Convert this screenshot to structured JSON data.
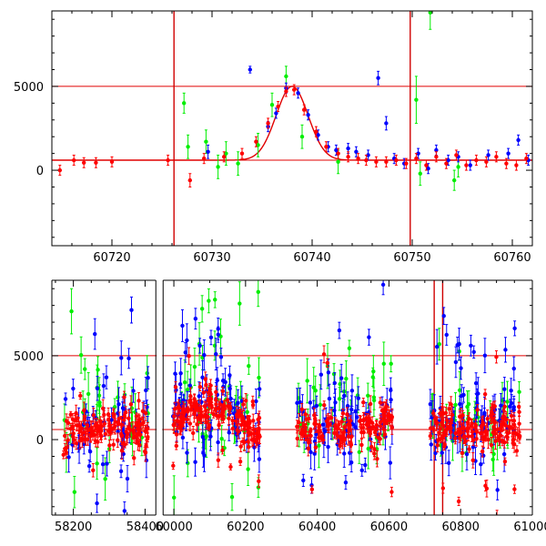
{
  "chart_data": [
    {
      "type": "scatter",
      "title": "",
      "xlabel": "",
      "ylabel": "",
      "xlim": [
        60714,
        60762
      ],
      "ylim": [
        -4500,
        9500
      ],
      "xticks": [
        60720,
        60730,
        60740,
        60750,
        60760
      ],
      "yticks": [
        0,
        5000
      ],
      "hlines": [
        5000,
        600
      ],
      "vlines": [
        60726.2,
        60749.8
      ],
      "colors": {
        "blue": "#0000ff",
        "green": "#00ee00",
        "red": "#ff0000",
        "lines": "#dd0000"
      },
      "model": {
        "baseline": 600,
        "peak_time": 60738.0,
        "peak_value": 5000,
        "width": 1.6
      },
      "series": [
        {
          "color": "blue",
          "x": [
            60729.6,
            60733.8,
            60735.6,
            60736.4,
            60737.4,
            60738.6,
            60739.6,
            60740.6,
            60741.6,
            60742.4,
            60743.6,
            60744.4,
            60745.6,
            60746.6,
            60747.4,
            60748.2,
            60749.2,
            60750.6,
            60751.6,
            60752.4,
            60753.6,
            60754.6,
            60755.8,
            60757.6,
            60759.6,
            60760.6,
            60761.6
          ],
          "y": [
            1100,
            6000,
            2600,
            3400,
            4900,
            4600,
            3300,
            2100,
            1400,
            1200,
            1300,
            1100,
            900,
            5500,
            2800,
            700,
            400,
            1000,
            100,
            1200,
            600,
            800,
            300,
            900,
            1000,
            1800,
            600
          ],
          "err": [
            400,
            200,
            300,
            300,
            300,
            300,
            300,
            300,
            300,
            300,
            300,
            300,
            300,
            400,
            400,
            300,
            300,
            300,
            300,
            300,
            300,
            300,
            300,
            300,
            300,
            300,
            300
          ]
        },
        {
          "color": "green",
          "x": [
            60727.2,
            60727.6,
            60729.4,
            60730.6,
            60731.4,
            60732.6,
            60734.6,
            60736.0,
            60737.4,
            60739.0,
            60742.6,
            60750.4,
            60750.8,
            60751.8,
            60754.2,
            60754.6
          ],
          "y": [
            4000,
            1400,
            1700,
            200,
            1000,
            400,
            1500,
            3900,
            5600,
            2000,
            500,
            4200,
            -200,
            9400,
            -600,
            200
          ],
          "err": [
            600,
            700,
            700,
            700,
            700,
            700,
            700,
            700,
            600,
            700,
            700,
            1400,
            700,
            1000,
            600,
            600
          ]
        },
        {
          "color": "red",
          "x": [
            60714.8,
            60716.2,
            60717.2,
            60718.4,
            60720.0,
            60725.6,
            60727.8,
            60729.2,
            60731.2,
            60733.0,
            60734.4,
            60735.6,
            60736.6,
            60737.4,
            60738.2,
            60739.2,
            60740.4,
            60741.4,
            60742.6,
            60743.6,
            60744.6,
            60745.4,
            60746.4,
            60747.4,
            60748.4,
            60749.4,
            60750.4,
            60751.4,
            60752.4,
            60753.4,
            60754.4,
            60755.4,
            60756.4,
            60757.4,
            60758.4,
            60759.4,
            60760.4,
            60761.4
          ],
          "y": [
            0,
            600,
            450,
            450,
            500,
            600,
            -600,
            700,
            800,
            1000,
            1700,
            2800,
            3800,
            4700,
            4800,
            3600,
            2300,
            1400,
            1000,
            800,
            700,
            600,
            500,
            500,
            600,
            400,
            700,
            300,
            800,
            400,
            900,
            300,
            600,
            500,
            800,
            400,
            300,
            700
          ],
          "err": [
            300,
            300,
            300,
            300,
            300,
            300,
            400,
            300,
            300,
            300,
            300,
            300,
            300,
            300,
            300,
            300,
            300,
            300,
            300,
            300,
            300,
            300,
            300,
            300,
            300,
            300,
            300,
            300,
            300,
            300,
            300,
            300,
            300,
            300,
            300,
            300,
            300,
            300
          ]
        }
      ]
    },
    {
      "type": "scatter",
      "title": "",
      "xlabel": "",
      "ylabel": "",
      "xlim": [
        58140,
        61000
      ],
      "ylim": [
        -4500,
        9500
      ],
      "xticks": [
        58200,
        58400,
        60000,
        60200,
        60400,
        60600,
        60800,
        61000
      ],
      "yticks": [
        0,
        5000
      ],
      "hlines": [
        5000,
        600
      ],
      "vlines": [
        60726.2,
        60749.8
      ],
      "axis_breaks": [
        [
          58430,
          59970
        ]
      ],
      "colors": {
        "blue": "#0000ff",
        "green": "#00ee00",
        "red": "#ff0000",
        "lines": "#dd0000"
      },
      "season_bumps": [
        {
          "center": 60100,
          "amplitude": 1500,
          "width": 55
        },
        {
          "center": 60605,
          "amplitude": 800,
          "width": 15
        }
      ],
      "seasons": [
        {
          "x_start": 58170,
          "x_end": 58410,
          "n_red": 140,
          "n_blue": 55,
          "n_green": 30
        },
        {
          "x_start": 59995,
          "x_end": 60240,
          "n_red": 170,
          "n_blue": 80,
          "n_green": 45
        },
        {
          "x_start": 60340,
          "x_end": 60610,
          "n_red": 130,
          "n_blue": 70,
          "n_green": 35
        },
        {
          "x_start": 60715,
          "x_end": 60965,
          "n_red": 150,
          "n_blue": 75,
          "n_green": 35
        }
      ]
    }
  ]
}
